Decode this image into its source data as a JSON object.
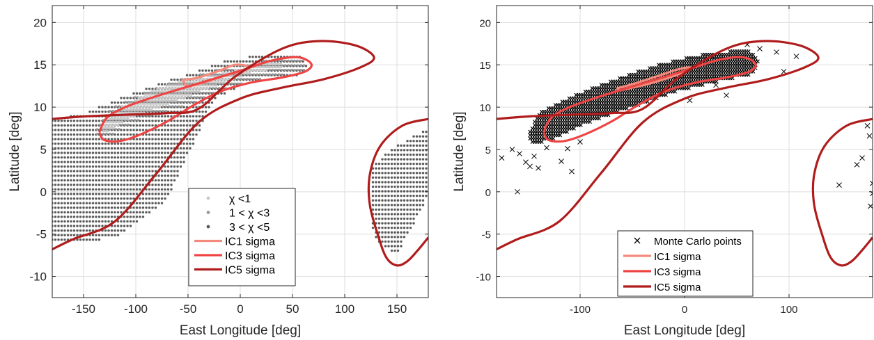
{
  "chart_data": [
    {
      "type": "scatter",
      "xlabel": "East Longitude [deg]",
      "ylabel": "Latitude [deg]",
      "xlim": [
        -180,
        180
      ],
      "ylim": [
        -12.5,
        22
      ],
      "xticks": [
        -150,
        -100,
        -50,
        0,
        50,
        100,
        150
      ],
      "xtick_labels": [
        "-150",
        "-100",
        "-50",
        "0",
        "50",
        "100",
        "150"
      ],
      "yticks": [
        -10,
        -5,
        0,
        5,
        10,
        15,
        20
      ],
      "ytick_labels": [
        "-10",
        "-5",
        "0",
        "5",
        "10",
        "15",
        "20"
      ],
      "grid": true,
      "legend_position": "bottom-center",
      "legend": [
        "χ <1",
        "1 <  χ <3",
        "3 <  χ <5",
        "IC1 sigma",
        "IC3 sigma",
        "IC5 sigma"
      ],
      "colors": {
        "chi1": "#c8c8c8",
        "chi3": "#999999",
        "chi5": "#5a5a5a",
        "ic1": "#f48a7c",
        "ic3": "#ee4444",
        "ic5": "#b01c1c"
      },
      "series": [
        {
          "name": "χ <1",
          "kind": "region",
          "polygon": [
            [
              -135,
              7.5
            ],
            [
              -115,
              10
            ],
            [
              -75,
              12.5
            ],
            [
              -30,
              13.7
            ],
            [
              0,
              14.5
            ],
            [
              25,
              15.2
            ],
            [
              40,
              15.3
            ],
            [
              40,
              14.7
            ],
            [
              10,
              14
            ],
            [
              -30,
              12.2
            ],
            [
              -70,
              10.3
            ],
            [
              -105,
              8.7
            ],
            [
              -130,
              6.8
            ]
          ]
        },
        {
          "name": "1 <  χ <3",
          "kind": "region",
          "polygon": [
            [
              -140,
              7
            ],
            [
              -125,
              9.7
            ],
            [
              -95,
              11.6
            ],
            [
              -55,
              13.4
            ],
            [
              -15,
              14.7
            ],
            [
              30,
              15.7
            ],
            [
              60,
              15.8
            ],
            [
              62,
              14.2
            ],
            [
              30,
              13.7
            ],
            [
              -10,
              12.3
            ],
            [
              -55,
              10
            ],
            [
              -95,
              8.6
            ],
            [
              -130,
              6.3
            ]
          ]
        },
        {
          "name": "3 <  χ <5",
          "kind": "region",
          "polygon": [
            [
              -180,
              8.6
            ],
            [
              -150,
              9.2
            ],
            [
              -110,
              11.4
            ],
            [
              -60,
              13.5
            ],
            [
              -20,
              15.3
            ],
            [
              20,
              16.2
            ],
            [
              55,
              16.2
            ],
            [
              67,
              14.7
            ],
            [
              55,
              13.6
            ],
            [
              15,
              13.2
            ],
            [
              -25,
              11
            ],
            [
              -70,
              -1
            ],
            [
              -120,
              -5.5
            ],
            [
              -180,
              -6.2
            ]
          ]
        },
        {
          "name": "3 <  χ <5 (east)",
          "kind": "region",
          "polygon": [
            [
              125,
              3
            ],
            [
              150,
              5.5
            ],
            [
              180,
              7.5
            ],
            [
              180,
              -0.5
            ],
            [
              150,
              -7.5
            ],
            [
              128,
              -5.5
            ],
            [
              124,
              -1
            ]
          ]
        },
        {
          "name": "IC1 sigma",
          "x": [
            -55,
            -40,
            -20,
            -5,
            8,
            5,
            -15,
            -35,
            -50,
            -55
          ],
          "y": [
            13.2,
            13.5,
            14.3,
            15,
            14.8,
            14.4,
            13.7,
            12.9,
            12.5,
            13.2
          ]
        },
        {
          "name": "IC3 sigma",
          "x": [
            -135,
            -128,
            -110,
            -80,
            -40,
            0,
            30,
            55,
            68,
            62,
            40,
            10,
            -20,
            -45,
            -70,
            -95,
            -115,
            -130,
            -135
          ],
          "y": [
            7,
            8.7,
            10,
            11.3,
            12.8,
            14.3,
            15.5,
            15.9,
            15.1,
            14.2,
            13.5,
            12.9,
            11.8,
            10.2,
            8.3,
            6.8,
            6,
            6.1,
            7
          ]
        },
        {
          "name": "IC5 sigma",
          "x": [
            -180,
            -150,
            -110,
            -70,
            -40,
            -5,
            40,
            75,
            110,
            128,
            115,
            80,
            40,
            0,
            -40,
            -80,
            -120,
            -160,
            -180
          ],
          "y": [
            8.6,
            8.9,
            9.1,
            9.3,
            9.8,
            13.6,
            16.9,
            17.8,
            17.3,
            15.9,
            14.7,
            13.3,
            12.3,
            11,
            8.2,
            2.2,
            -3.5,
            -5.6,
            -6.8
          ]
        },
        {
          "name": "IC5 sigma (east)",
          "x": [
            180,
            155,
            134,
            124,
            124,
            132,
            140,
            150,
            160,
            170,
            180
          ],
          "y": [
            8.6,
            7.8,
            5.4,
            2,
            -1.5,
            -5.2,
            -7.8,
            -8.7,
            -8.2,
            -6.9,
            -5.4
          ]
        }
      ]
    },
    {
      "type": "scatter",
      "xlabel": "East Longitude [deg]",
      "ylabel": "Latitude [deg]",
      "xlim": [
        -180,
        180
      ],
      "ylim": [
        -12.5,
        22
      ],
      "xticks": [
        -100,
        0,
        100
      ],
      "xtick_labels": [
        "-100",
        "0",
        "100"
      ],
      "yticks": [
        -10,
        -5,
        0,
        5,
        10,
        15,
        20
      ],
      "ytick_labels": [
        "-10",
        "-5",
        "0",
        "5",
        "10",
        "15",
        "20"
      ],
      "grid": true,
      "legend_position": "bottom-center",
      "legend": [
        "Monte Carlo points",
        "IC1 sigma",
        "IC3 sigma",
        "IC5 sigma"
      ],
      "colors": {
        "mc": "#000000",
        "ic1": "#f48a7c",
        "ic3": "#ee4444",
        "ic5": "#b01c1c"
      },
      "series": [
        {
          "name": "Monte Carlo points",
          "kind": "region",
          "polygon": [
            [
              -150,
              6.5
            ],
            [
              -140,
              9.3
            ],
            [
              -100,
              11.7
            ],
            [
              -60,
              13.6
            ],
            [
              -20,
              15.2
            ],
            [
              20,
              16.3
            ],
            [
              60,
              16.8
            ],
            [
              72,
              15.5
            ],
            [
              65,
              13.9
            ],
            [
              30,
              13
            ],
            [
              -10,
              11.8
            ],
            [
              -50,
              10
            ],
            [
              -90,
              8.3
            ],
            [
              -125,
              6.3
            ],
            [
              -145,
              5.5
            ]
          ]
        },
        {
          "name": "Monte Carlo outliers",
          "x": [
            -165,
            -158,
            -152,
            -148,
            -144,
            -140,
            -160,
            -132,
            -118,
            -108,
            -112,
            -100,
            60,
            72,
            88,
            95,
            107,
            148,
            165,
            170,
            175,
            177,
            180,
            180,
            178,
            -175,
            5,
            40,
            30
          ],
          "y": [
            5,
            4.5,
            3.5,
            3,
            4.2,
            2.8,
            0,
            5.2,
            3.6,
            2.4,
            5.1,
            5.9,
            17.4,
            16.9,
            16.5,
            14.2,
            16,
            0.8,
            3.2,
            4,
            7.8,
            6.6,
            1,
            -0.2,
            -1.7,
            4,
            10.8,
            11.4,
            12.6
          ]
        },
        {
          "name": "IC1 sigma",
          "x": [
            -65,
            -45,
            -25,
            -8,
            5,
            3,
            -12,
            -30,
            -50,
            -62,
            -65
          ],
          "y": [
            12.2,
            12.9,
            13.7,
            14.4,
            14.7,
            14.3,
            13.6,
            12.9,
            12.3,
            12,
            12.2
          ]
        },
        {
          "name": "IC3 sigma",
          "x": [
            -135,
            -128,
            -110,
            -80,
            -40,
            0,
            30,
            55,
            68,
            62,
            40,
            10,
            -20,
            -45,
            -70,
            -95,
            -115,
            -130,
            -135
          ],
          "y": [
            7,
            8.7,
            10,
            11.3,
            12.8,
            14.3,
            15.5,
            15.9,
            15.1,
            14.2,
            13.5,
            12.9,
            11.8,
            10.2,
            8.3,
            6.8,
            6,
            6.1,
            7
          ]
        },
        {
          "name": "IC5 sigma",
          "x": [
            -180,
            -150,
            -110,
            -70,
            -40,
            -5,
            40,
            75,
            110,
            128,
            115,
            80,
            40,
            0,
            -40,
            -80,
            -120,
            -160,
            -180
          ],
          "y": [
            8.6,
            8.9,
            9.1,
            9.3,
            9.8,
            13.6,
            16.9,
            17.8,
            17.3,
            15.9,
            14.7,
            13.3,
            12.3,
            11,
            8.2,
            2.2,
            -3.5,
            -5.6,
            -6.8
          ]
        },
        {
          "name": "IC5 sigma (east)",
          "x": [
            180,
            155,
            134,
            124,
            124,
            132,
            140,
            150,
            160,
            170,
            180
          ],
          "y": [
            8.6,
            7.8,
            5.4,
            2,
            -1.5,
            -5.2,
            -7.8,
            -8.7,
            -8.2,
            -6.9,
            -5.4
          ]
        }
      ]
    }
  ]
}
